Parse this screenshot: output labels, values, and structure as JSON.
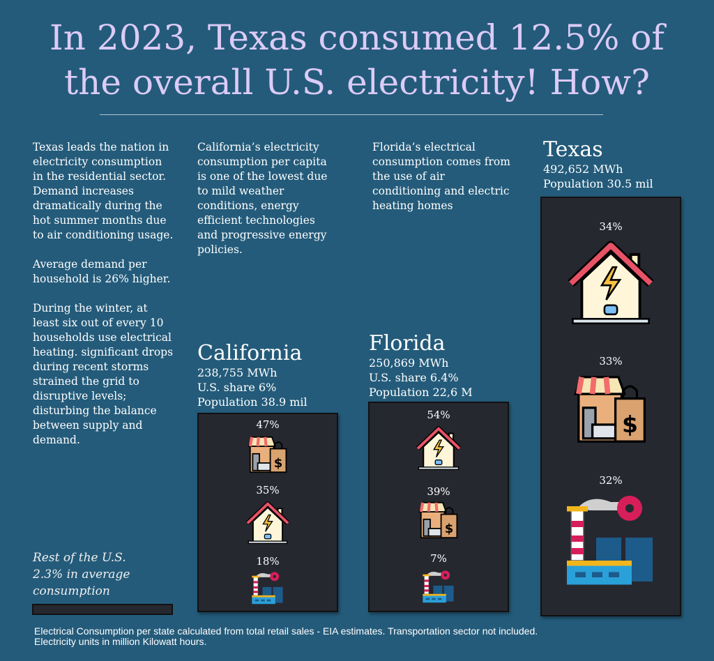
{
  "title": {
    "line1": "In 2023, Texas consumed 12.5% of",
    "line2": "the overall U.S. electricity! How?"
  },
  "col_texas": {
    "p1": "Texas leads the nation in electricity consumption in the residential sector. Demand increases dramatically during the hot summer months due to air conditioning usage.",
    "p2": "Average demand per household is 26% higher.",
    "p3": "During the winter, at least six out of every 10 households use electrical heating. significant drops during recent storms strained the grid to  disruptive levels; disturbing the balance between supply and demand."
  },
  "col_california": "California’s electricity consumption per capita is one of the lowest due to mild weather conditions, energy efficient technologies and progressive energy policies.",
  "col_florida": "Florida’s electrical consumption comes from the use of air conditioning and electric heating homes",
  "california": {
    "name": "California",
    "mwh": "238,755 MWh",
    "share": "U.S. share 6%",
    "population": "Population 38.9 mil",
    "items": [
      {
        "icon": "commercial-shop-icon",
        "pct": "47%"
      },
      {
        "icon": "residential-house-icon",
        "pct": "35%"
      },
      {
        "icon": "industrial-factory-icon",
        "pct": "18%"
      }
    ]
  },
  "florida": {
    "name": "Florida",
    "mwh": "250,869 MWh",
    "share": "U.S. share 6.4%",
    "population": "Population 22,6 M",
    "items": [
      {
        "icon": "residential-house-icon",
        "pct": "54%"
      },
      {
        "icon": "commercial-shop-icon",
        "pct": "39%"
      },
      {
        "icon": "industrial-factory-icon",
        "pct": "7%"
      }
    ]
  },
  "texas": {
    "name": "Texas",
    "mwh": "492,652 MWh",
    "population": "Population 30.5 mil",
    "items": [
      {
        "icon": "residential-house-icon",
        "pct": "34%"
      },
      {
        "icon": "commercial-shop-icon",
        "pct": "33%"
      },
      {
        "icon": "industrial-factory-icon",
        "pct": "32%"
      }
    ]
  },
  "rest": {
    "line1": "Rest of the U.S.",
    "line2": "2.3% in average",
    "line3": "consumption"
  },
  "footer": {
    "line1": "Electrical Consumption per state calculated from total retail sales - EIA estimates. Transportation sector not included.",
    "line2": "Electricity units in million Kilowatt hours."
  },
  "colors": {
    "background": "#245b7a",
    "title": "#dccbf7",
    "panel": "#262830"
  }
}
